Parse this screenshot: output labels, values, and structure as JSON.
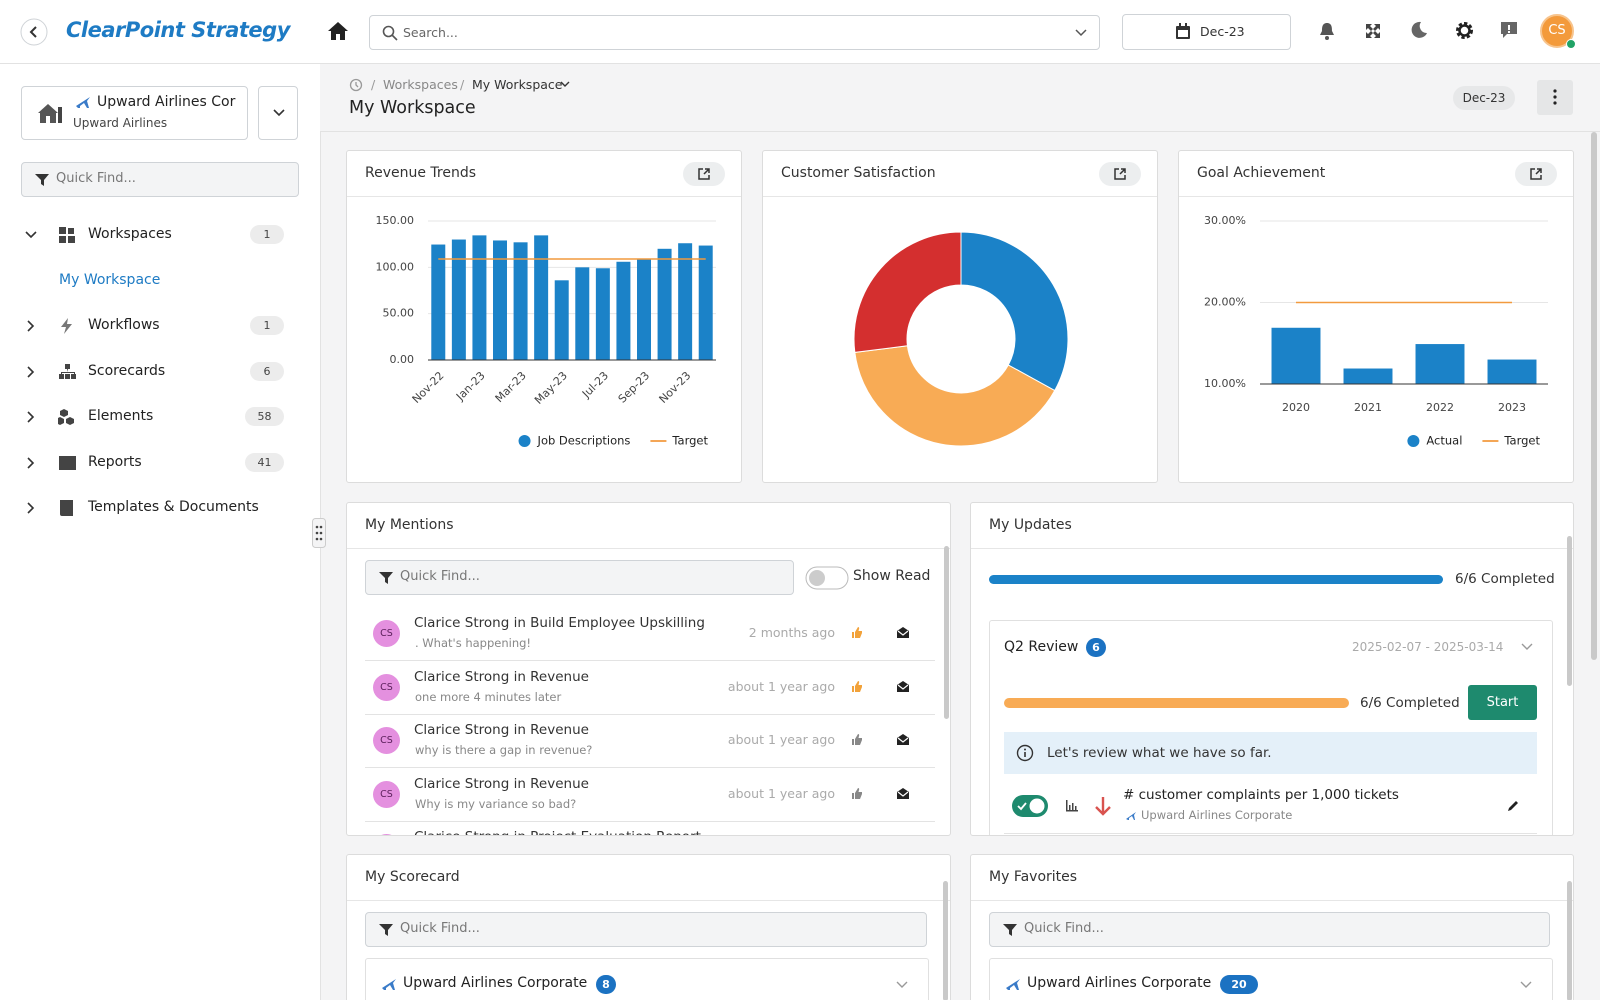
{
  "header": {
    "logo": "ClearPoint Strategy",
    "search": "Search...",
    "period": "Dec-23",
    "avatar": "CS"
  },
  "sidebar": {
    "org": {
      "name": "Upward Airlines Cor",
      "sub": "Upward Airlines"
    },
    "quick_find": "Quick Find...",
    "nav": [
      {
        "label": "Workspaces",
        "count": 1,
        "children": [
          "My Workspace"
        ]
      },
      {
        "label": "Workflows",
        "count": 1
      },
      {
        "label": "Scorecards",
        "count": 6
      },
      {
        "label": "Elements",
        "count": 58
      },
      {
        "label": "Reports",
        "count": 41
      },
      {
        "label": "Templates & Documents"
      }
    ]
  },
  "page": {
    "breadcrumb": [
      "Workspaces",
      "My Workspace"
    ],
    "title": "My Workspace",
    "period": "Dec-23"
  },
  "chart_data": [
    {
      "type": "bar",
      "title": "Revenue Trends",
      "categories": [
        "Nov-22",
        null,
        "Jan-23",
        null,
        "Mar-23",
        null,
        "May-23",
        null,
        "Jul-23",
        null,
        "Sep-23",
        null,
        "Nov-23",
        null
      ],
      "series": [
        {
          "name": "Job Descriptions",
          "color": "#1b82c8",
          "values": [
            124.6,
            130,
            134.5,
            129,
            127,
            134.5,
            86,
            100,
            99,
            106,
            109,
            120,
            126,
            123.5
          ]
        },
        {
          "name": "Target",
          "color": "#f29a3e",
          "kind": "line",
          "values": [
            109,
            109,
            109,
            109,
            109,
            109,
            109,
            109,
            109,
            109,
            109,
            109,
            109,
            109
          ]
        }
      ],
      "ylim": [
        0,
        150
      ],
      "yticks": [
        {
          "value": 0,
          "label": "0.00"
        },
        {
          "value": 50,
          "label": "50.00"
        },
        {
          "value": 100,
          "label": "100.00"
        },
        {
          "value": 150,
          "label": "150.00"
        }
      ],
      "grid": true,
      "legend": "bottom-right"
    },
    {
      "type": "donut",
      "title": "Customer Satisfaction",
      "values": [
        33,
        40,
        27
      ],
      "colors": [
        "#1b82c8",
        "#f8ab55",
        "#d42f2f"
      ]
    },
    {
      "type": "bar",
      "title": "Goal Achievement",
      "categories": [
        "2020",
        "2021",
        "2022",
        "2023"
      ],
      "series": [
        {
          "name": "Actual",
          "color": "#1b82c8",
          "values": [
            16.9,
            11.9,
            14.9,
            13
          ]
        },
        {
          "name": "Target",
          "color": "#f29a3e",
          "kind": "line",
          "values": [
            20,
            20,
            20,
            20
          ]
        }
      ],
      "ylim": [
        10,
        30
      ],
      "yticks": [
        {
          "value": 10,
          "label": "10.00%"
        },
        {
          "value": 20,
          "label": "20.00%"
        },
        {
          "value": 30,
          "label": "30.00%"
        }
      ],
      "grid": true,
      "legend": "bottom-right"
    }
  ],
  "mentions": {
    "title": "My Mentions",
    "quick_find": "Quick Find...",
    "toggle": "Show Read",
    "items": [
      {
        "initials": "CS",
        "text": "Clarice Strong in Build Employee Upskilling",
        "note": ". What's happening!",
        "time": "2 months ago"
      },
      {
        "initials": "CS",
        "text": "Clarice Strong in Revenue",
        "note": "one more 4 minutes later",
        "time": "about 1 year ago"
      },
      {
        "initials": "CS",
        "text": "Clarice Strong in Revenue",
        "note": "why is there a gap in revenue?",
        "time": "about 1 year ago"
      },
      {
        "initials": "CS",
        "text": "Clarice Strong in Revenue",
        "note": "Why is my variance so bad?",
        "time": "about 1 year ago"
      },
      {
        "initials": "CS",
        "text": "Clarice Strong in Project Evaluation Report"
      }
    ]
  },
  "updates": {
    "title": "My Updates",
    "progress": "6/6 Completed",
    "review": {
      "name": "Q2 Review",
      "count": 6,
      "dates": "2025-02-07 - 2025-03-14",
      "progress": "6/6 Completed",
      "action": "Start",
      "info": "Let's review what we have so far.",
      "items": [
        {
          "name": "# customer complaints per 1,000 tickets",
          "org": "Upward Airlines Corporate"
        }
      ]
    }
  },
  "scorecard": {
    "title": "My Scorecard",
    "quick_find": "Quick Find...",
    "group": {
      "name": "Upward Airlines Corporate",
      "count": 8
    }
  },
  "favorites": {
    "title": "My Favorites",
    "quick_find": "Quick Find...",
    "group": {
      "name": "Upward Airlines Corporate",
      "count": 20
    }
  }
}
